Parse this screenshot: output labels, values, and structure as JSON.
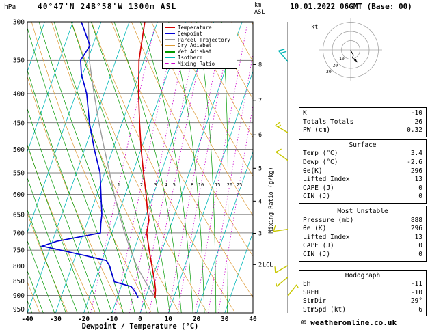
{
  "header": {
    "pressure_unit": "hPa",
    "title": "40°47'N 24B°58'W 1300m ASL",
    "date_title": "10.01.2022 06GMT (Base: 00)",
    "altitude_unit": "km ASL"
  },
  "axes": {
    "pressure_ticks": [
      300,
      350,
      400,
      450,
      500,
      550,
      600,
      650,
      700,
      750,
      800,
      850,
      900,
      950
    ],
    "temp_ticks": [
      -40,
      -30,
      -20,
      -10,
      0,
      10,
      20,
      30,
      40
    ],
    "km_ticks": [
      {
        "km": 8,
        "p": 356
      },
      {
        "km": 7,
        "p": 411
      },
      {
        "km": 6,
        "p": 472
      },
      {
        "km": 5,
        "p": 540
      },
      {
        "km": 4,
        "p": 616
      },
      {
        "km": 3,
        "p": 701
      },
      {
        "km": 2,
        "p": 795
      }
    ],
    "lcl": {
      "label": "LCL",
      "p": 795
    },
    "xlabel": "Dewpoint / Temperature (°C)",
    "right_label": "Mixing Ratio (g/kg)"
  },
  "legend": [
    {
      "label": "Temperature",
      "color": "#d40000",
      "dash": false
    },
    {
      "label": "Dewpoint",
      "color": "#0000d4",
      "dash": false
    },
    {
      "label": "Parcel Trajectory",
      "color": "#9c9c9c",
      "dash": false
    },
    {
      "label": "Dry Adiabat",
      "color": "#dd9933",
      "dash": false
    },
    {
      "label": "Wet Adiabat",
      "color": "#009900",
      "dash": false
    },
    {
      "label": "Isotherm",
      "color": "#00b8b8",
      "dash": false
    },
    {
      "label": "Mixing Ratio",
      "color": "#cc00cc",
      "dash": true
    }
  ],
  "chart_data": {
    "type": "line",
    "subtype": "skew-t-log-p-sounding",
    "title": "40°47'N 24B°58'W 1300m ASL",
    "xlabel": "Dewpoint / Temperature (°C)",
    "pressure_range_hPa": [
      300,
      965
    ],
    "temp_range_C": [
      -40,
      40
    ],
    "series": [
      {
        "name": "Temperature",
        "points_p_T": [
          [
            908,
            3.4
          ],
          [
            880,
            2.6
          ],
          [
            850,
            1.2
          ],
          [
            800,
            -1.6
          ],
          [
            750,
            -4.6
          ],
          [
            700,
            -7.6
          ],
          [
            665,
            -8.4
          ],
          [
            645,
            -9.8
          ],
          [
            600,
            -12.6
          ],
          [
            550,
            -16.2
          ],
          [
            500,
            -20.0
          ],
          [
            450,
            -23.8
          ],
          [
            400,
            -27.8
          ],
          [
            350,
            -31.8
          ],
          [
            300,
            -34.5
          ]
        ]
      },
      {
        "name": "Dewpoint",
        "points_p_T": [
          [
            908,
            -2.6
          ],
          [
            885,
            -4.5
          ],
          [
            868,
            -6.5
          ],
          [
            852,
            -13.0
          ],
          [
            820,
            -15.2
          ],
          [
            800,
            -16.6
          ],
          [
            782,
            -18.5
          ],
          [
            768,
            -26.0
          ],
          [
            752,
            -35.0
          ],
          [
            738,
            -43.0
          ],
          [
            724,
            -38.5
          ],
          [
            710,
            -30.0
          ],
          [
            700,
            -24.0
          ],
          [
            675,
            -25.0
          ],
          [
            650,
            -25.8
          ],
          [
            600,
            -28.6
          ],
          [
            550,
            -31.6
          ],
          [
            500,
            -36.6
          ],
          [
            450,
            -41.6
          ],
          [
            400,
            -46.2
          ],
          [
            370,
            -50.5
          ],
          [
            350,
            -52.5
          ],
          [
            330,
            -51.0
          ],
          [
            300,
            -57.0
          ]
        ]
      },
      {
        "name": "Parcel Trajectory",
        "points_p_T": [
          [
            908,
            3.4
          ],
          [
            850,
            -2.2
          ],
          [
            800,
            -7.0
          ],
          [
            750,
            -11.2
          ],
          [
            700,
            -15.4
          ],
          [
            650,
            -19.6
          ],
          [
            600,
            -23.9
          ],
          [
            550,
            -28.2
          ],
          [
            500,
            -33.0
          ],
          [
            450,
            -38.2
          ],
          [
            400,
            -43.6
          ],
          [
            350,
            -49.4
          ],
          [
            300,
            -54.5
          ]
        ]
      }
    ],
    "mixing_ratio_lines_gkg": [
      1,
      2,
      3,
      4,
      5,
      8,
      10,
      15,
      20,
      25
    ],
    "wind_barbs": [
      {
        "p": 352,
        "kt": 20,
        "from_deg": 320,
        "color": "#00b4b4"
      },
      {
        "p": 468,
        "kt": 15,
        "from_deg": 300,
        "color": "#c8c800"
      },
      {
        "p": 523,
        "kt": 10,
        "from_deg": 305,
        "color": "#c8c800"
      },
      {
        "p": 690,
        "kt": 10,
        "from_deg": 262,
        "color": "#c8c800"
      },
      {
        "p": 798,
        "kt": 10,
        "from_deg": 240,
        "color": "#c8c800"
      },
      {
        "p": 836,
        "kt": 5,
        "from_deg": 230,
        "color": "#c8c800"
      },
      {
        "p": 902,
        "kt": 5,
        "from_deg": 38,
        "color": "#c8c800"
      }
    ]
  },
  "hodograph": {
    "unit_label": "kt",
    "ring_values_kt": [
      10,
      20,
      30
    ],
    "ring_labels": [
      "10",
      "20",
      "30"
    ],
    "trace_kt": [
      [
        0,
        0
      ],
      [
        1,
        -2.5
      ],
      [
        3,
        -5.5
      ],
      [
        2,
        -8.5
      ],
      [
        4.5,
        -11
      ]
    ]
  },
  "panel": {
    "sections": [
      {
        "header": null,
        "rows": [
          {
            "label": "K",
            "value": "-10"
          },
          {
            "label": "Totals Totals",
            "value": "26"
          },
          {
            "label": "PW (cm)",
            "value": "0.32"
          }
        ]
      },
      {
        "header": "Surface",
        "rows": [
          {
            "label": "Temp (°C)",
            "value": "3.4"
          },
          {
            "label": "Dewp (°C)",
            "value": "-2.6"
          },
          {
            "label": "θe(K)",
            "value": "296"
          },
          {
            "label": "Lifted Index",
            "value": "13"
          },
          {
            "label": "CAPE (J)",
            "value": "0"
          },
          {
            "label": "CIN (J)",
            "value": "0"
          }
        ]
      },
      {
        "header": "Most Unstable",
        "rows": [
          {
            "label": "Pressure (mb)",
            "value": "888"
          },
          {
            "label": "θe (K)",
            "value": "296"
          },
          {
            "label": "Lifted Index",
            "value": "13"
          },
          {
            "label": "CAPE (J)",
            "value": "0"
          },
          {
            "label": "CIN (J)",
            "value": "0"
          }
        ]
      },
      {
        "header": "Hodograph",
        "rows": [
          {
            "label": "EH",
            "value": "-11"
          },
          {
            "label": "SREH",
            "value": "-10"
          },
          {
            "label": "StmDir",
            "value": "29°"
          },
          {
            "label": "StmSpd (kt)",
            "value": "6"
          }
        ]
      }
    ]
  },
  "footer": {
    "copyright": "© weatheronline.co.uk"
  }
}
